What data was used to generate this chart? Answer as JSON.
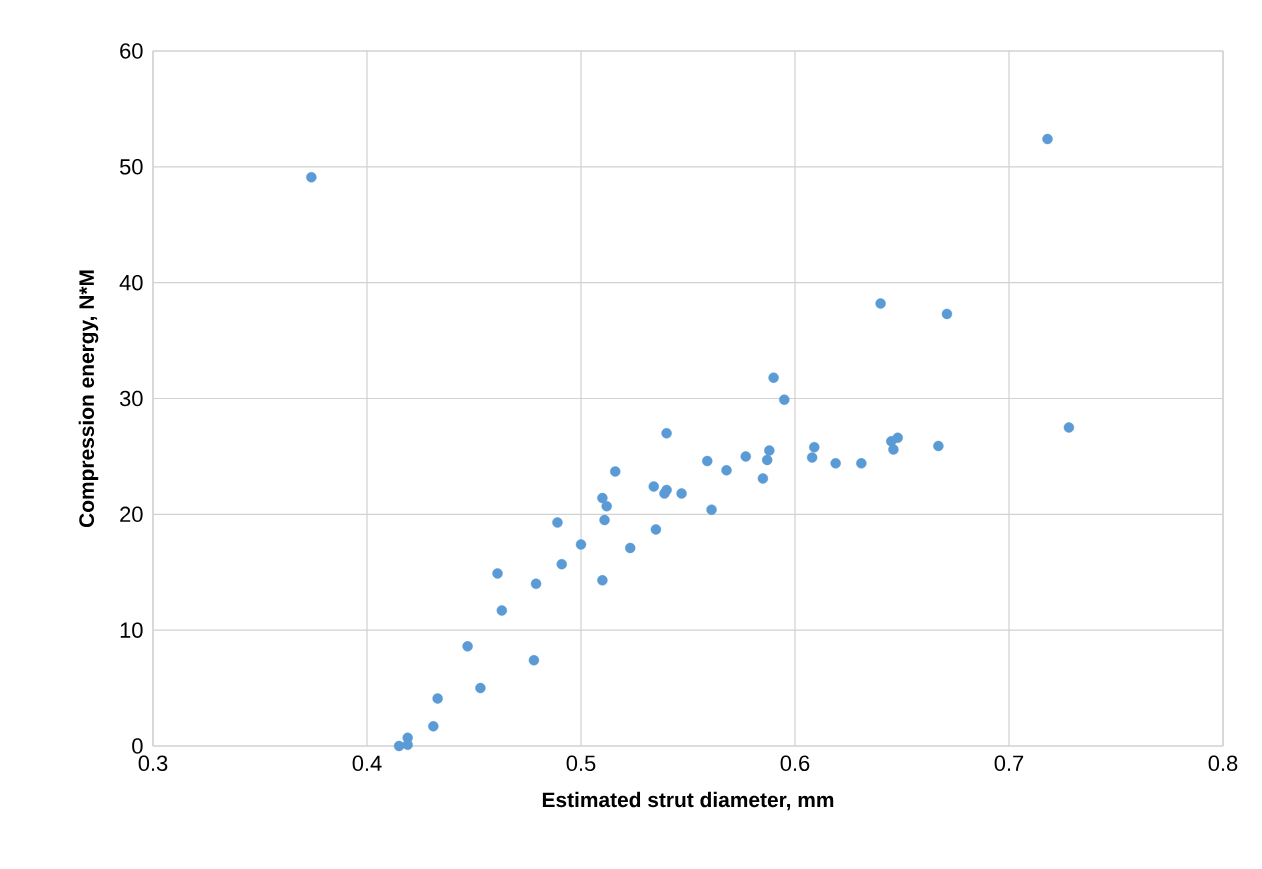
{
  "chart_data": {
    "type": "scatter",
    "xlabel": "Estimated strut diameter, mm",
    "ylabel": "Compression energy, N*M",
    "color": "#5b9bd5",
    "marker": "circle",
    "grid": true,
    "xlim": [
      0.3,
      0.8
    ],
    "ylim": [
      0,
      60
    ],
    "xticks": [
      0.3,
      0.4,
      0.5,
      0.6,
      0.7,
      0.8
    ],
    "yticks": [
      0,
      10,
      20,
      30,
      40,
      50,
      60
    ],
    "x": [
      0.374,
      0.718,
      0.64,
      0.671,
      0.59,
      0.595,
      0.728,
      0.54,
      0.648,
      0.645,
      0.667,
      0.609,
      0.646,
      0.588,
      0.577,
      0.587,
      0.608,
      0.559,
      0.619,
      0.631,
      0.568,
      0.516,
      0.585,
      0.534,
      0.54,
      0.547,
      0.539,
      0.51,
      0.512,
      0.561,
      0.511,
      0.489,
      0.535,
      0.5,
      0.523,
      0.491,
      0.461,
      0.51,
      0.479,
      0.463,
      0.447,
      0.478,
      0.453,
      0.433,
      0.431,
      0.419,
      0.419,
      0.415
    ],
    "values": [
      49.1,
      52.4,
      38.2,
      37.3,
      31.8,
      29.9,
      27.5,
      27.0,
      26.6,
      26.3,
      25.9,
      25.8,
      25.6,
      25.5,
      25.0,
      24.7,
      24.9,
      24.6,
      24.4,
      24.4,
      23.8,
      23.7,
      23.1,
      22.4,
      22.1,
      21.8,
      21.8,
      21.4,
      20.7,
      20.4,
      19.5,
      19.3,
      18.7,
      17.4,
      17.1,
      15.7,
      14.9,
      14.3,
      14.0,
      11.7,
      8.6,
      7.4,
      5.0,
      4.1,
      1.7,
      0.7,
      0.1,
      0.0
    ]
  }
}
